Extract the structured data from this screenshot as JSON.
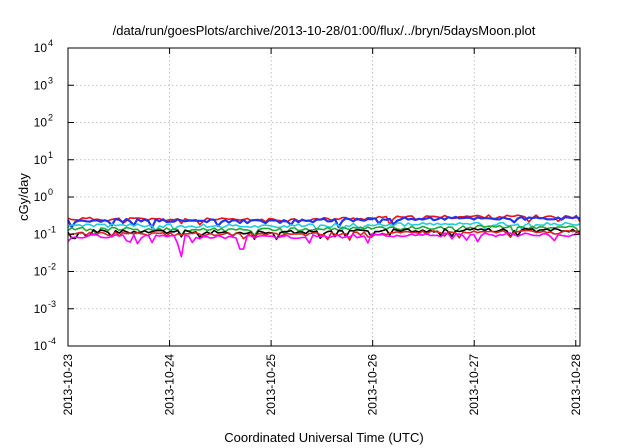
{
  "chart_data": {
    "type": "line",
    "title": "/data/run/goesPlots/archive/2013-10-28/01:00/flux/../bryn/5daysMoon.plot",
    "xlabel": "Coordinated Universal Time (UTC)",
    "ylabel": "cGy/day",
    "y_scale": "log",
    "ylim": [
      0.0001,
      10000
    ],
    "xlim": [
      "2013-10-23",
      "2013-10-28 01:00"
    ],
    "grid": true,
    "legend": "none",
    "x_ticks": [
      "2013-10-23",
      "2013-10-24",
      "2013-10-25",
      "2013-10-26",
      "2013-10-27",
      "2013-10-28"
    ],
    "y_ticks": [
      {
        "base": "10",
        "exp": "-4"
      },
      {
        "base": "10",
        "exp": "-3"
      },
      {
        "base": "10",
        "exp": "-2"
      },
      {
        "base": "10",
        "exp": "-1"
      },
      {
        "base": "10",
        "exp": "0"
      },
      {
        "base": "10",
        "exp": "1"
      },
      {
        "base": "10",
        "exp": "2"
      },
      {
        "base": "10",
        "exp": "3"
      },
      {
        "base": "10",
        "exp": "4"
      }
    ],
    "series": [
      {
        "color": "#ee1111",
        "base": 0.26,
        "dips": [],
        "samples": [
          {
            "x": "2013-10-23",
            "y": 0.26
          },
          {
            "x": "2013-10-24",
            "y": 0.25
          },
          {
            "x": "2013-10-25",
            "y": 0.24
          },
          {
            "x": "2013-10-26",
            "y": 0.27
          },
          {
            "x": "2013-10-27",
            "y": 0.3
          },
          {
            "x": "2013-10-28",
            "y": 0.29
          }
        ]
      },
      {
        "color": "#2233ee",
        "base": 0.24,
        "dips": [],
        "samples": [
          {
            "x": "2013-10-23",
            "y": 0.24
          },
          {
            "x": "2013-10-24",
            "y": 0.23
          },
          {
            "x": "2013-10-25",
            "y": 0.22
          },
          {
            "x": "2013-10-26",
            "y": 0.25
          },
          {
            "x": "2013-10-27",
            "y": 0.27
          },
          {
            "x": "2013-10-28",
            "y": 0.26
          }
        ]
      },
      {
        "color": "#22ccdd",
        "base": 0.175,
        "dips": [],
        "samples": [
          {
            "x": "2013-10-23",
            "y": 0.175
          },
          {
            "x": "2013-10-24",
            "y": 0.17
          },
          {
            "x": "2013-10-25",
            "y": 0.165
          },
          {
            "x": "2013-10-26",
            "y": 0.18
          },
          {
            "x": "2013-10-27",
            "y": 0.19
          },
          {
            "x": "2013-10-28",
            "y": 0.185
          }
        ]
      },
      {
        "color": "#22aa33",
        "base": 0.14,
        "dips": [],
        "samples": [
          {
            "x": "2013-10-23",
            "y": 0.14
          },
          {
            "x": "2013-10-24",
            "y": 0.135
          },
          {
            "x": "2013-10-25",
            "y": 0.13
          },
          {
            "x": "2013-10-26",
            "y": 0.145
          },
          {
            "x": "2013-10-27",
            "y": 0.155
          },
          {
            "x": "2013-10-28",
            "y": 0.15
          }
        ]
      },
      {
        "color": "#000000",
        "base": 0.12,
        "dips": [],
        "samples": [
          {
            "x": "2013-10-23",
            "y": 0.12
          },
          {
            "x": "2013-10-24",
            "y": 0.115
          },
          {
            "x": "2013-10-25",
            "y": 0.112
          },
          {
            "x": "2013-10-26",
            "y": 0.122
          },
          {
            "x": "2013-10-27",
            "y": 0.13
          },
          {
            "x": "2013-10-28",
            "y": 0.128
          }
        ]
      },
      {
        "color": "#dd2222",
        "base": 0.105,
        "dips": [],
        "samples": [
          {
            "x": "2013-10-23",
            "y": 0.105
          },
          {
            "x": "2013-10-24",
            "y": 0.1
          },
          {
            "x": "2013-10-25",
            "y": 0.098
          },
          {
            "x": "2013-10-26",
            "y": 0.107
          },
          {
            "x": "2013-10-27",
            "y": 0.114
          },
          {
            "x": "2013-10-28",
            "y": 0.112
          }
        ]
      },
      {
        "color": "#ff00ff",
        "base": 0.09,
        "dips": [
          {
            "x": "2013-10-24 03:00",
            "y": 0.025
          },
          {
            "x": "2013-10-24 17:00",
            "y": 0.04
          },
          {
            "x": "2013-10-23 20:00",
            "y": 0.06
          }
        ],
        "samples": [
          {
            "x": "2013-10-23",
            "y": 0.09
          },
          {
            "x": "2013-10-24",
            "y": 0.085
          },
          {
            "x": "2013-10-25",
            "y": 0.083
          },
          {
            "x": "2013-10-26",
            "y": 0.092
          },
          {
            "x": "2013-10-27",
            "y": 0.098
          },
          {
            "x": "2013-10-28",
            "y": 0.096
          }
        ]
      }
    ]
  }
}
